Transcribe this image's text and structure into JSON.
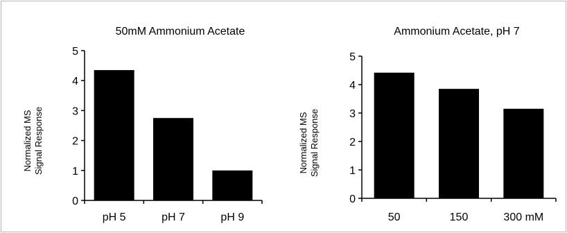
{
  "chart_data": [
    {
      "type": "bar",
      "title": "50mM Ammonium Acetate",
      "ylabel": [
        "Normalized MS",
        "Signal Response"
      ],
      "xlabel": "",
      "categories": [
        "pH 5",
        "pH 7",
        "pH 9"
      ],
      "values": [
        4.35,
        2.75,
        1.0
      ],
      "ylim": [
        0,
        5
      ],
      "yticks": [
        "0",
        "1",
        "2",
        "3",
        "4",
        "5"
      ],
      "grid": false,
      "bar_color": "#000000"
    },
    {
      "type": "bar",
      "title": "Ammonium Acetate, pH 7",
      "ylabel": [
        "Normalized MS",
        "Signal Response"
      ],
      "xlabel": "",
      "categories": [
        "50",
        "150",
        "300 mM"
      ],
      "values": [
        4.42,
        3.85,
        3.15
      ],
      "ylim": [
        0,
        5
      ],
      "yticks": [
        "0",
        "1",
        "2",
        "3",
        "4",
        "5"
      ],
      "grid": false,
      "bar_color": "#000000"
    }
  ]
}
